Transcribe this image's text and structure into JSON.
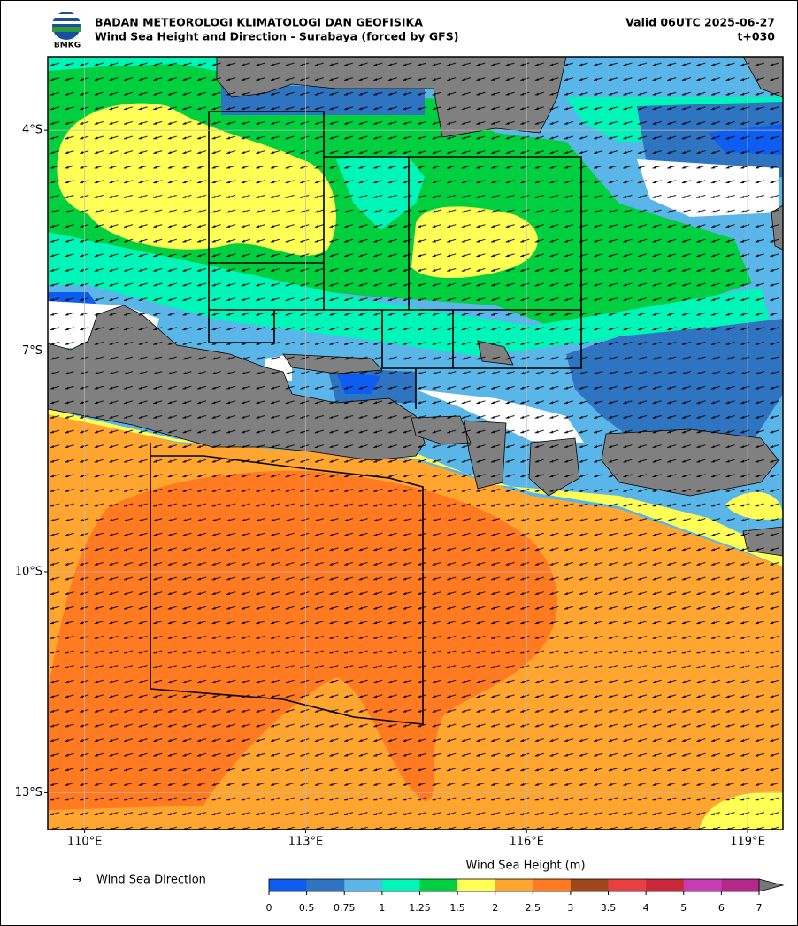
{
  "header": {
    "logo_text": "BMKG",
    "title": "BADAN METEOROLOGI KLIMATOLOGI DAN GEOFISIKA",
    "subtitle": "Wind Sea Height and Direction - Surabaya (forced by GFS)",
    "valid": "Valid 06UTC 2025-06-27",
    "lead": "t+030"
  },
  "map": {
    "lonlim": [
      109.5,
      119.48
    ],
    "latlim": [
      -3.0,
      -13.5
    ],
    "grid": true,
    "xticks": [
      {
        "value": 110,
        "label": "110°E"
      },
      {
        "value": 113,
        "label": "113°E"
      },
      {
        "value": 116,
        "label": "116°E"
      },
      {
        "value": 119,
        "label": "119°E"
      }
    ],
    "yticks": [
      {
        "value": -4,
        "label": "4°S"
      },
      {
        "value": -7,
        "label": "7°S"
      },
      {
        "value": -10,
        "label": "10°S"
      },
      {
        "value": -13,
        "label": "13°S"
      }
    ]
  },
  "legend": {
    "arrow_symbol": "→",
    "arrow_label": "Wind Sea Direction"
  },
  "colorbar": {
    "title": "Wind Sea Height (m)",
    "levels": [
      0,
      0.5,
      0.75,
      1,
      1.25,
      1.5,
      2,
      2.5,
      3,
      3.5,
      4,
      5,
      6,
      7
    ],
    "colors": [
      "#0d5ef0",
      "#2f74c0",
      "#5ab6e8",
      "#00f5b8",
      "#00d040",
      "#ffff55",
      "#ffa530",
      "#ff7a20",
      "#a0461e",
      "#e84040",
      "#c8283a",
      "#c83cb4",
      "#b4288c"
    ]
  }
}
